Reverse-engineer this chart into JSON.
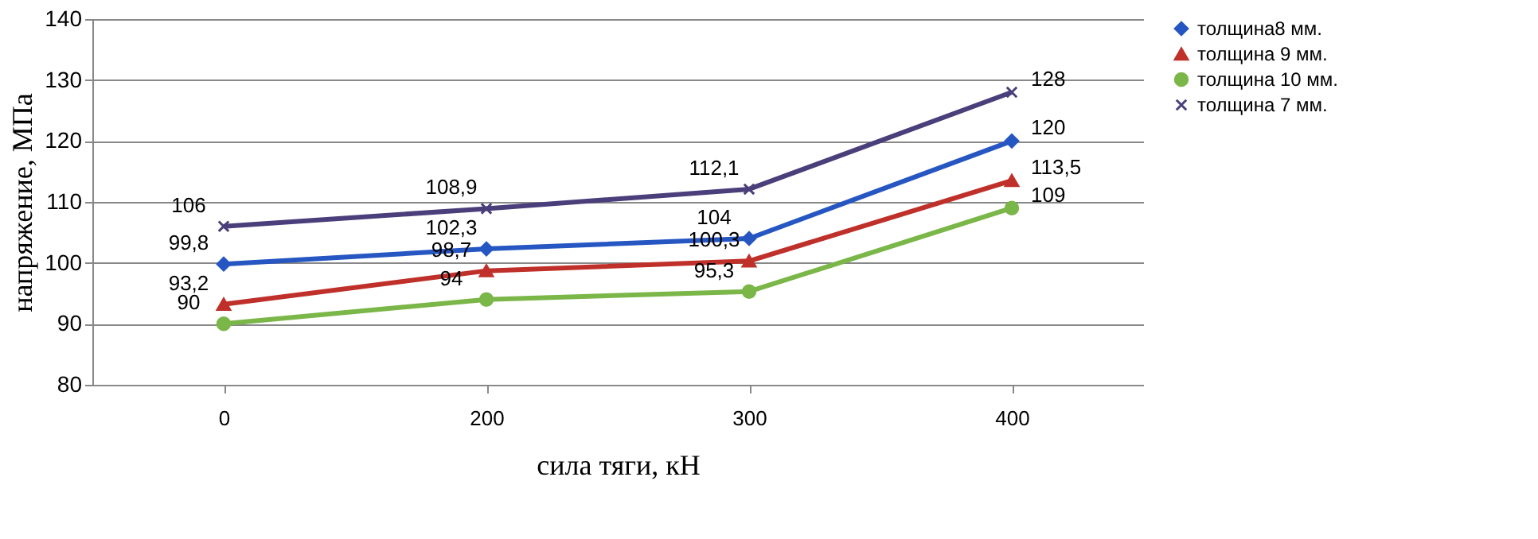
{
  "chart_data": {
    "type": "line",
    "xlabel": "сила тяги,  кН",
    "ylabel": "напряжение, МПа",
    "categories": [
      "0",
      "200",
      "300",
      "400"
    ],
    "series": [
      {
        "name": "толщина8 мм.",
        "color": "#2656c2",
        "marker": "diamond",
        "values": [
          99.8,
          102.3,
          104,
          120
        ],
        "value_labels": [
          "99,8",
          "102,3",
          "104",
          "120"
        ]
      },
      {
        "name": "толщина 9 мм.",
        "color": "#c0302a",
        "marker": "triangle",
        "values": [
          93.2,
          98.7,
          100.3,
          113.5
        ],
        "value_labels": [
          "93,2",
          "98,7",
          "100,3",
          "113,5"
        ]
      },
      {
        "name": "толщина 10 мм.",
        "color": "#7ab648",
        "marker": "circle",
        "values": [
          90,
          94,
          95.3,
          109
        ],
        "value_labels": [
          "90",
          "94",
          "95,3",
          "109"
        ]
      },
      {
        "name": "толщина 7 мм.",
        "color": "#4a3f7a",
        "marker": "cross",
        "values": [
          106,
          108.9,
          112.1,
          128
        ],
        "value_labels": [
          "106",
          "108,9",
          "112,1",
          "128"
        ]
      }
    ],
    "ylim": [
      80,
      140
    ],
    "yticks": [
      80,
      90,
      100,
      110,
      120,
      130,
      140
    ],
    "grid": "y",
    "legend": "right"
  }
}
